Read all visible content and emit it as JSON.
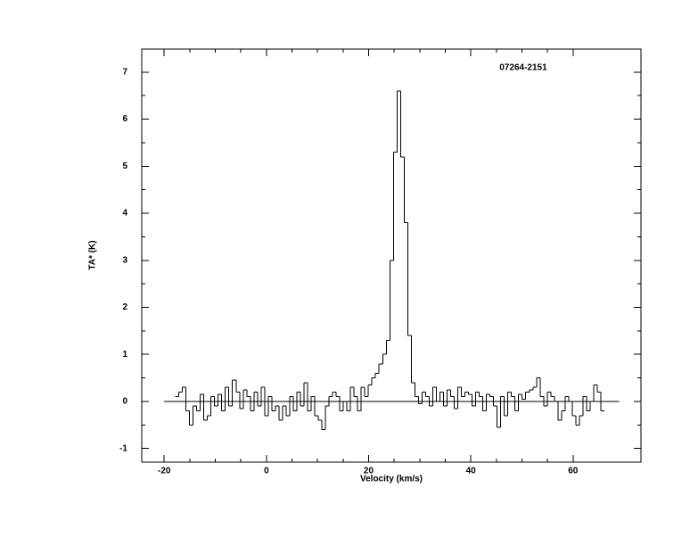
{
  "chart_data": {
    "type": "step",
    "annotation": "07264-2151",
    "x_label": "Velocity (km/s)",
    "y_label": "TA* (K)",
    "xlim": [
      -24.4,
      73.3
    ],
    "ylim": [
      -1.29,
      7.49
    ],
    "xticks": [
      -20,
      0,
      20,
      40,
      60
    ],
    "yticks": [
      -1,
      0,
      1,
      2,
      3,
      4,
      5,
      6,
      7
    ],
    "color": "#000000",
    "baseline": {
      "x": [
        -20,
        69
      ],
      "value": 0
    },
    "x": [
      -17.5,
      -16.8,
      -16.1,
      -15.4,
      -14.7,
      -14.0,
      -13.3,
      -12.6,
      -11.9,
      -11.2,
      -10.5,
      -9.8,
      -9.1,
      -8.4,
      -7.7,
      -7.0,
      -6.3,
      -5.6,
      -4.9,
      -4.2,
      -3.5,
      -2.8,
      -2.1,
      -1.4,
      -0.7,
      0,
      0.7,
      1.4,
      2.1,
      2.8,
      3.5,
      4.2,
      4.9,
      5.6,
      6.3,
      7.0,
      7.7,
      8.4,
      9.1,
      9.8,
      10.5,
      11.2,
      11.9,
      12.6,
      13.3,
      14.0,
      14.7,
      15.4,
      16.1,
      16.8,
      17.5,
      18.2,
      18.9,
      19.6,
      20.3,
      21.0,
      21.7,
      22.4,
      23.1,
      23.8,
      24.5,
      25.2,
      25.9,
      26.6,
      27.3,
      28.0,
      28.7,
      29.4,
      30.1,
      30.8,
      31.5,
      32.2,
      32.9,
      33.6,
      34.3,
      35.0,
      35.7,
      36.4,
      37.1,
      37.8,
      38.5,
      39.2,
      39.9,
      40.6,
      41.3,
      42.0,
      42.7,
      43.4,
      44.1,
      44.8,
      45.5,
      46.2,
      46.9,
      47.6,
      48.3,
      49.0,
      49.7,
      50.4,
      51.1,
      51.8,
      52.5,
      53.2,
      53.9,
      54.6,
      55.3,
      56.0,
      56.7,
      57.4,
      58.1,
      58.8,
      59.5,
      60.2,
      60.9,
      61.6,
      62.3,
      63.0,
      63.7,
      64.4,
      65.1,
      65.8
    ],
    "values": [
      0.1,
      0.2,
      0.3,
      -0.2,
      -0.5,
      -0.1,
      -0.2,
      0.15,
      -0.4,
      -0.3,
      0.1,
      -0.1,
      0.15,
      -0.2,
      0.3,
      -0.1,
      0.45,
      0.2,
      -0.15,
      0.25,
      0.1,
      -0.2,
      0.2,
      -0.1,
      0.3,
      -0.3,
      0.1,
      -0.2,
      -0.1,
      -0.4,
      -0.1,
      -0.3,
      0.1,
      -0.2,
      0.2,
      -0.1,
      0.4,
      -0.2,
      0.1,
      -0.3,
      -0.4,
      -0.6,
      -0.1,
      0.1,
      0.2,
      0.1,
      -0.2,
      0.0,
      -0.2,
      0.3,
      0.1,
      -0.2,
      0.3,
      0.1,
      0.35,
      0.5,
      0.6,
      0.8,
      1.0,
      1.3,
      3.0,
      5.3,
      6.6,
      5.2,
      3.8,
      1.4,
      0.4,
      0.1,
      -0.05,
      0.2,
      0.1,
      -0.1,
      0.3,
      0.0,
      0.2,
      -0.1,
      0.25,
      0.1,
      -0.15,
      0.3,
      0.1,
      0.2,
      0.15,
      -0.1,
      0.2,
      0.1,
      -0.2,
      0.15,
      0.1,
      -0.1,
      -0.55,
      0.1,
      -0.3,
      0.2,
      0.1,
      -0.2,
      0.15,
      0.05,
      0.2,
      0.25,
      0.3,
      0.5,
      0.1,
      -0.1,
      0.2,
      0.1,
      0.0,
      -0.4,
      -0.2,
      0.1,
      0.0,
      -0.3,
      -0.5,
      -0.3,
      0.1,
      -0.2,
      0.0,
      0.35,
      0.2,
      -0.2
    ]
  }
}
